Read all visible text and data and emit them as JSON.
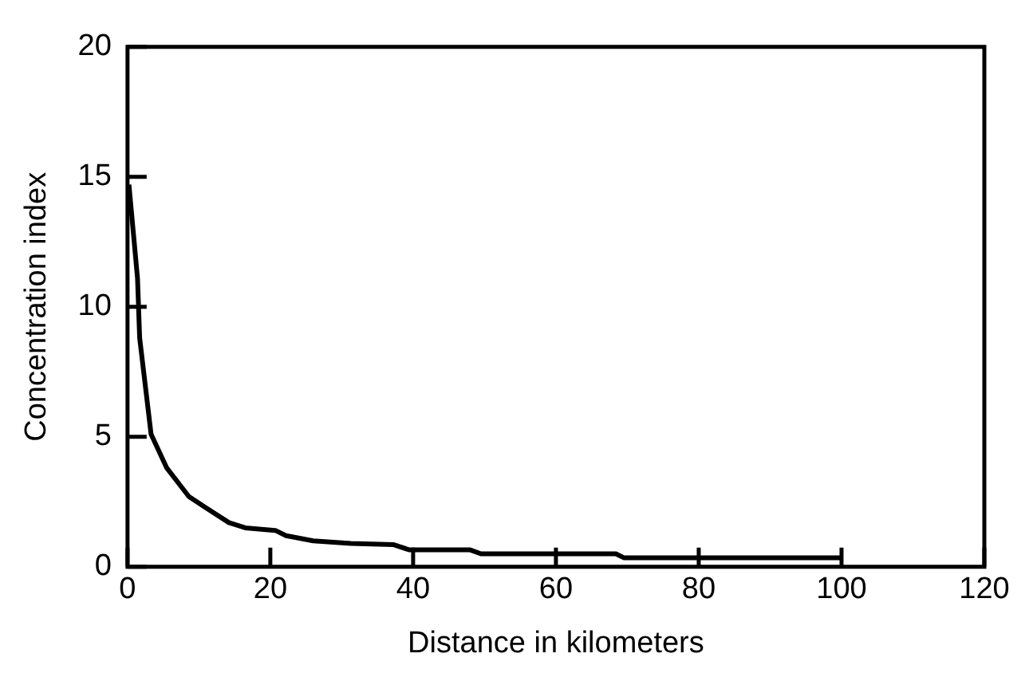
{
  "chart_data": {
    "type": "line",
    "xlabel": "Distance in kilometers",
    "ylabel": "Concentration index",
    "x": [
      0.2,
      1.4,
      1.7,
      3.3,
      5.5,
      8.6,
      10.8,
      14.2,
      16.5,
      20.7,
      22.2,
      26,
      31.3,
      37.3,
      39.5,
      48,
      49.5,
      68.4,
      69.5,
      100
    ],
    "series": [
      {
        "color": "#000000",
        "values": [
          14.7,
          11.1,
          8.8,
          5.1,
          3.8,
          2.7,
          2.3,
          1.7,
          1.5,
          1.4,
          1.2,
          1.0,
          0.9,
          0.85,
          0.65,
          0.65,
          0.5,
          0.5,
          0.35,
          0.35
        ]
      }
    ],
    "xlim": [
      0,
      120
    ],
    "xticks": [
      0,
      20,
      40,
      60,
      80,
      100,
      120
    ],
    "ylim": [
      0,
      20
    ],
    "yticks": [
      0,
      5,
      10,
      15,
      20
    ],
    "grid": false,
    "legend": false,
    "marker": "none",
    "line_style": "solid"
  }
}
